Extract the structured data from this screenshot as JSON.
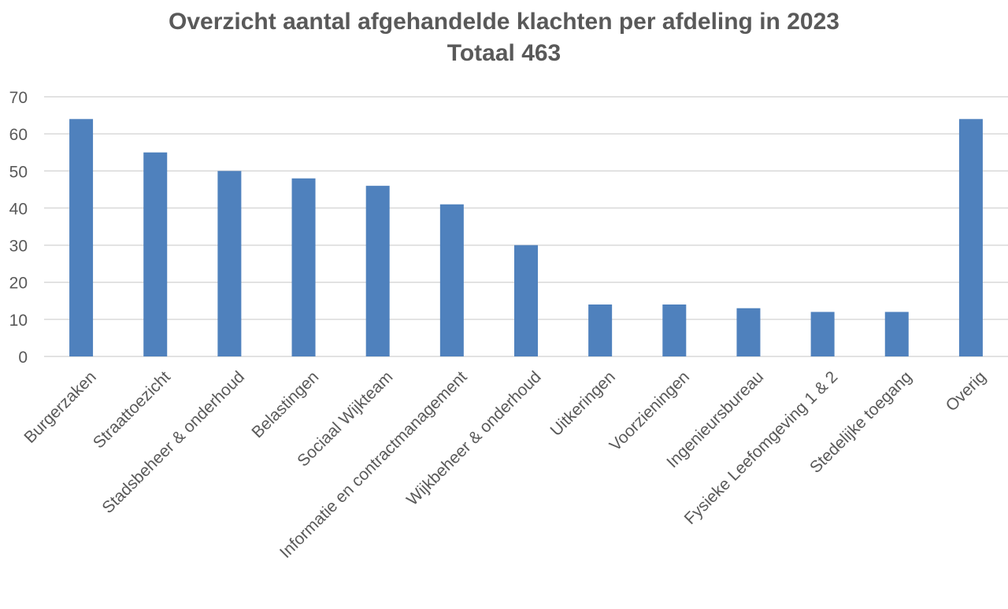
{
  "chart_data": {
    "type": "bar",
    "title": "Overzicht aantal afgehandelde klachten per afdeling in 2023",
    "subtitle": "Totaal 463",
    "xlabel": "",
    "ylabel": "",
    "ylim": [
      0,
      70
    ],
    "yticks": [
      0,
      10,
      20,
      30,
      40,
      50,
      60,
      70
    ],
    "grid": true,
    "legend": "none",
    "bar_color": "#4f81bd",
    "categories": [
      "Burgerzaken",
      "Straattoezicht",
      "Stadsbeheer & onderhoud",
      "Belastingen",
      "Sociaal Wijkteam",
      "Informatie en contractmanagement",
      "Wijkbeheer & onderhoud",
      "Uitkeringen",
      "Voorzieningen",
      "Ingenieursbureau",
      "Fysieke Leefomgeving 1 & 2",
      "Stedelijke toegang",
      "Overig"
    ],
    "values": [
      64,
      55,
      50,
      48,
      46,
      41,
      30,
      14,
      14,
      13,
      12,
      12,
      64
    ]
  }
}
